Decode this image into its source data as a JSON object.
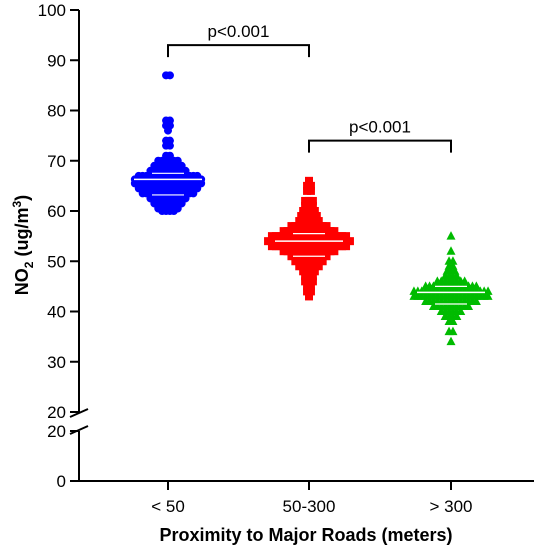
{
  "chart_data": {
    "type": "scatter",
    "subtype": "beeswarm-dot-plot",
    "categories": [
      "< 50",
      "50-300",
      "> 300"
    ],
    "xlabel": "Proximity to Major Roads (meters)",
    "ylabel": {
      "main": "NO",
      "sub": "2",
      "unit_prefix": " (ug/m",
      "sup": "3",
      "unit_suffix": ")"
    },
    "y_axis": {
      "break": true,
      "lower_segment": {
        "range": [
          0,
          20
        ],
        "ticks": [
          0,
          20
        ]
      },
      "upper_segment": {
        "range": [
          20,
          100
        ],
        "ticks": [
          20,
          30,
          40,
          50,
          60,
          70,
          80,
          90,
          100
        ]
      },
      "tick_labels": [
        "0",
        "20",
        "20",
        "30",
        "40",
        "50",
        "60",
        "70",
        "80",
        "90",
        "100"
      ]
    },
    "series": [
      {
        "category": "< 50",
        "color": "#0000ff",
        "marker": "circle",
        "median": 66.3,
        "iqr": [
          63.2,
          67.5
        ],
        "distribution": [
          {
            "y": 87,
            "count": 2
          },
          {
            "y": 78,
            "count": 2
          },
          {
            "y": 77,
            "count": 2
          },
          {
            "y": 76,
            "count": 1
          },
          {
            "y": 74,
            "count": 2
          },
          {
            "y": 73,
            "count": 2
          },
          {
            "y": 71,
            "count": 2
          },
          {
            "y": 70,
            "count": 6
          },
          {
            "y": 69,
            "count": 8
          },
          {
            "y": 68,
            "count": 10
          },
          {
            "y": 67,
            "count": 16
          },
          {
            "y": 66.3,
            "count": 18
          },
          {
            "y": 65.5,
            "count": 18
          },
          {
            "y": 64.5,
            "count": 16
          },
          {
            "y": 63.5,
            "count": 14
          },
          {
            "y": 62.5,
            "count": 10
          },
          {
            "y": 61.5,
            "count": 8
          },
          {
            "y": 60.5,
            "count": 6
          },
          {
            "y": 60,
            "count": 4
          }
        ]
      },
      {
        "category": "50-300",
        "color": "#ff0000",
        "marker": "square",
        "median": 54,
        "iqr": [
          51,
          55.5
        ],
        "distribution": [
          {
            "y": 66,
            "count": 1
          },
          {
            "y": 65,
            "count": 2
          },
          {
            "y": 64,
            "count": 2
          },
          {
            "y": 62,
            "count": 3
          },
          {
            "y": 61,
            "count": 3
          },
          {
            "y": 60,
            "count": 4
          },
          {
            "y": 59,
            "count": 5
          },
          {
            "y": 58,
            "count": 6
          },
          {
            "y": 57,
            "count": 10
          },
          {
            "y": 56,
            "count": 14
          },
          {
            "y": 55,
            "count": 20
          },
          {
            "y": 54,
            "count": 22
          },
          {
            "y": 53,
            "count": 20
          },
          {
            "y": 52,
            "count": 14
          },
          {
            "y": 51,
            "count": 10
          },
          {
            "y": 50,
            "count": 8
          },
          {
            "y": 49,
            "count": 6
          },
          {
            "y": 48,
            "count": 4
          },
          {
            "y": 47,
            "count": 3
          },
          {
            "y": 46,
            "count": 3
          },
          {
            "y": 45,
            "count": 2
          },
          {
            "y": 44,
            "count": 2
          },
          {
            "y": 43,
            "count": 1
          }
        ]
      },
      {
        "category": "> 300",
        "color": "#00bb00",
        "marker": "triangle",
        "median": 43.8,
        "iqr": [
          41.5,
          45
        ],
        "distribution": [
          {
            "y": 55,
            "count": 1
          },
          {
            "y": 52,
            "count": 1
          },
          {
            "y": 50,
            "count": 2
          },
          {
            "y": 49,
            "count": 2
          },
          {
            "y": 48,
            "count": 3
          },
          {
            "y": 47,
            "count": 4
          },
          {
            "y": 46,
            "count": 8
          },
          {
            "y": 45,
            "count": 14
          },
          {
            "y": 44,
            "count": 20
          },
          {
            "y": 43,
            "count": 20
          },
          {
            "y": 42,
            "count": 14
          },
          {
            "y": 41,
            "count": 10
          },
          {
            "y": 40,
            "count": 6
          },
          {
            "y": 39,
            "count": 4
          },
          {
            "y": 38,
            "count": 2
          },
          {
            "y": 36,
            "count": 2
          },
          {
            "y": 34,
            "count": 1
          }
        ]
      }
    ],
    "annotations": [
      {
        "text": "p<0.001",
        "from": "< 50",
        "to": "50-300",
        "y": 93
      },
      {
        "text": "p<0.001",
        "from": "50-300",
        "to": "> 300",
        "y": 74
      }
    ],
    "grid": false,
    "legend": "none"
  }
}
